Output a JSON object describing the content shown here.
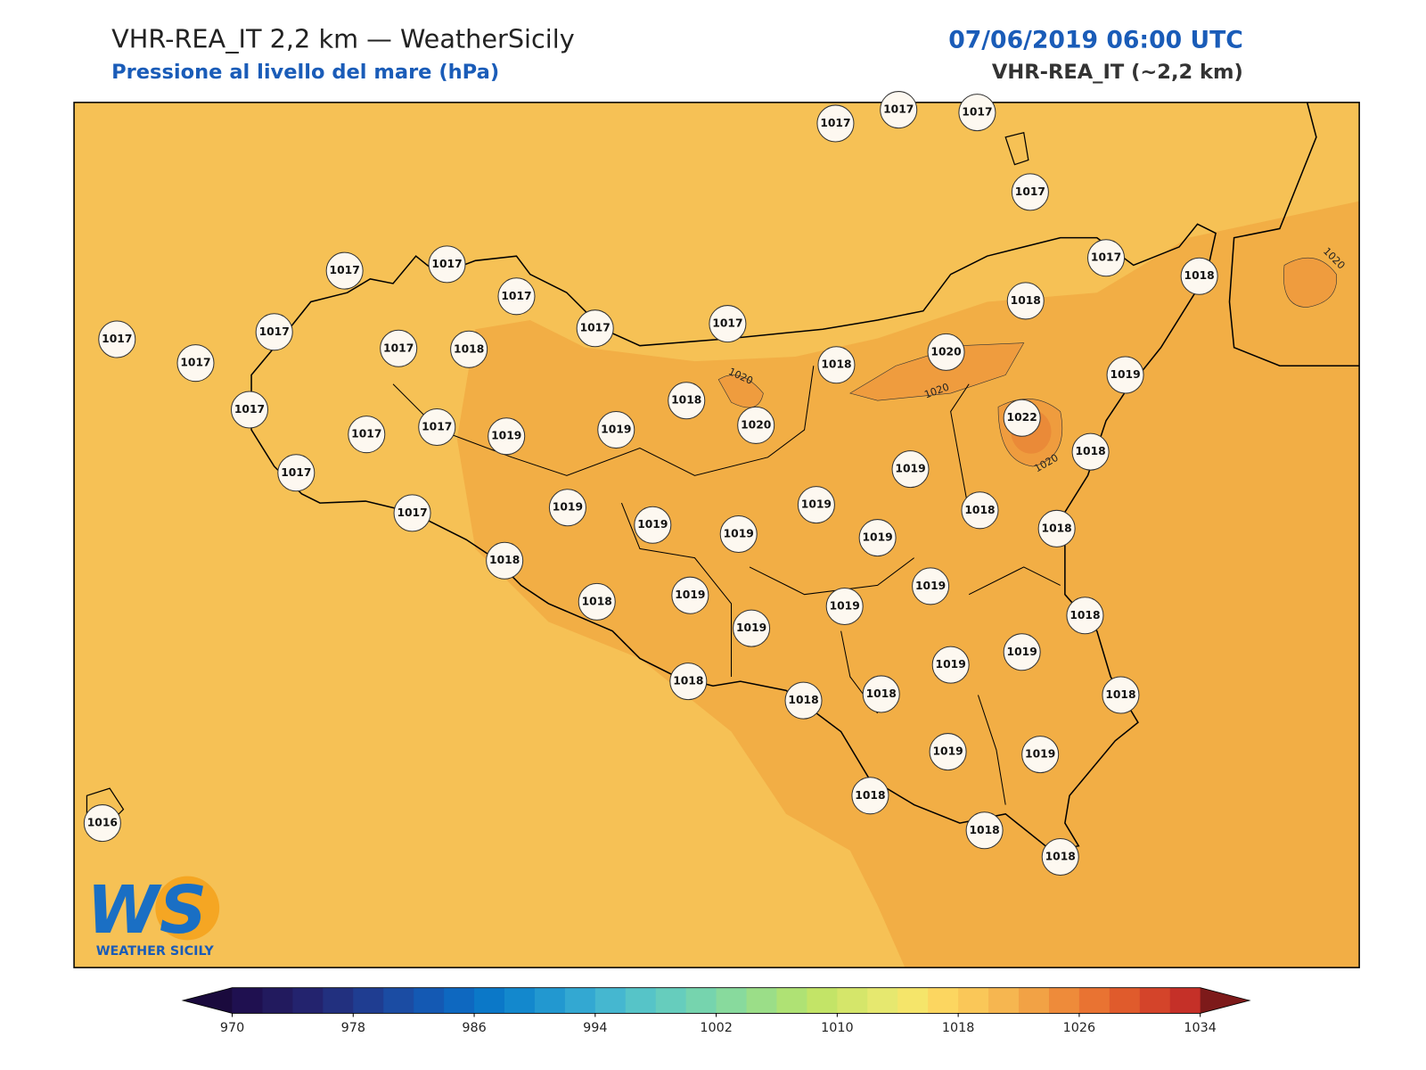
{
  "header": {
    "title": "VHR-REA_IT 2,2 km — WeatherSicily",
    "subtitle": "Pressione al livello del mare (hPa)",
    "datetime": "07/06/2019 06:00 UTC",
    "model": "VHR-REA_IT (~2,2 km)"
  },
  "stations": [
    1017,
    1017,
    1017,
    1017,
    1017,
    1018,
    1018,
    1017,
    1017,
    1017,
    1017,
    1017,
    1017,
    1017,
    1017,
    1017,
    1018,
    1017,
    1017,
    1017,
    1019,
    1019,
    1018,
    1020,
    1018,
    1020,
    1019,
    1022,
    1018,
    1019,
    1019,
    1018,
    1018,
    1017,
    1017,
    1019,
    1019,
    1019,
    1019,
    1018,
    1018,
    1019,
    1019,
    1019,
    1019,
    1018,
    1019,
    1019,
    1018,
    1018,
    1018,
    1018,
    1019,
    1019,
    1018,
    1018,
    1018,
    1016
  ],
  "contour_labels": [
    1020,
    1020,
    1020,
    1020
  ],
  "logo": {
    "mark": "WS",
    "text": "WEATHER SICILY"
  },
  "colorbar": {
    "ticks": [
      970,
      978,
      986,
      994,
      1002,
      1010,
      1018,
      1026,
      1034
    ],
    "colors": [
      "#1f1050",
      "#221a5e",
      "#23236e",
      "#22307f",
      "#1f3d91",
      "#1b4ca3",
      "#1459b3",
      "#0e68c0",
      "#0b78c8",
      "#1388cd",
      "#2298d0",
      "#33a8d2",
      "#45b7d0",
      "#56c4c8",
      "#66cdbd",
      "#76d4ae",
      "#88da9d",
      "#9bde88",
      "#afe274",
      "#c3e467",
      "#d5e66a",
      "#e6e86f",
      "#f5e56a",
      "#fcd660",
      "#fac758",
      "#f6b650",
      "#f2a245",
      "#ee8b3a",
      "#e97332",
      "#e05b2c",
      "#d4442a",
      "#c53028"
    ],
    "under": "#1a0a3d",
    "over": "#7d1a1a"
  }
}
